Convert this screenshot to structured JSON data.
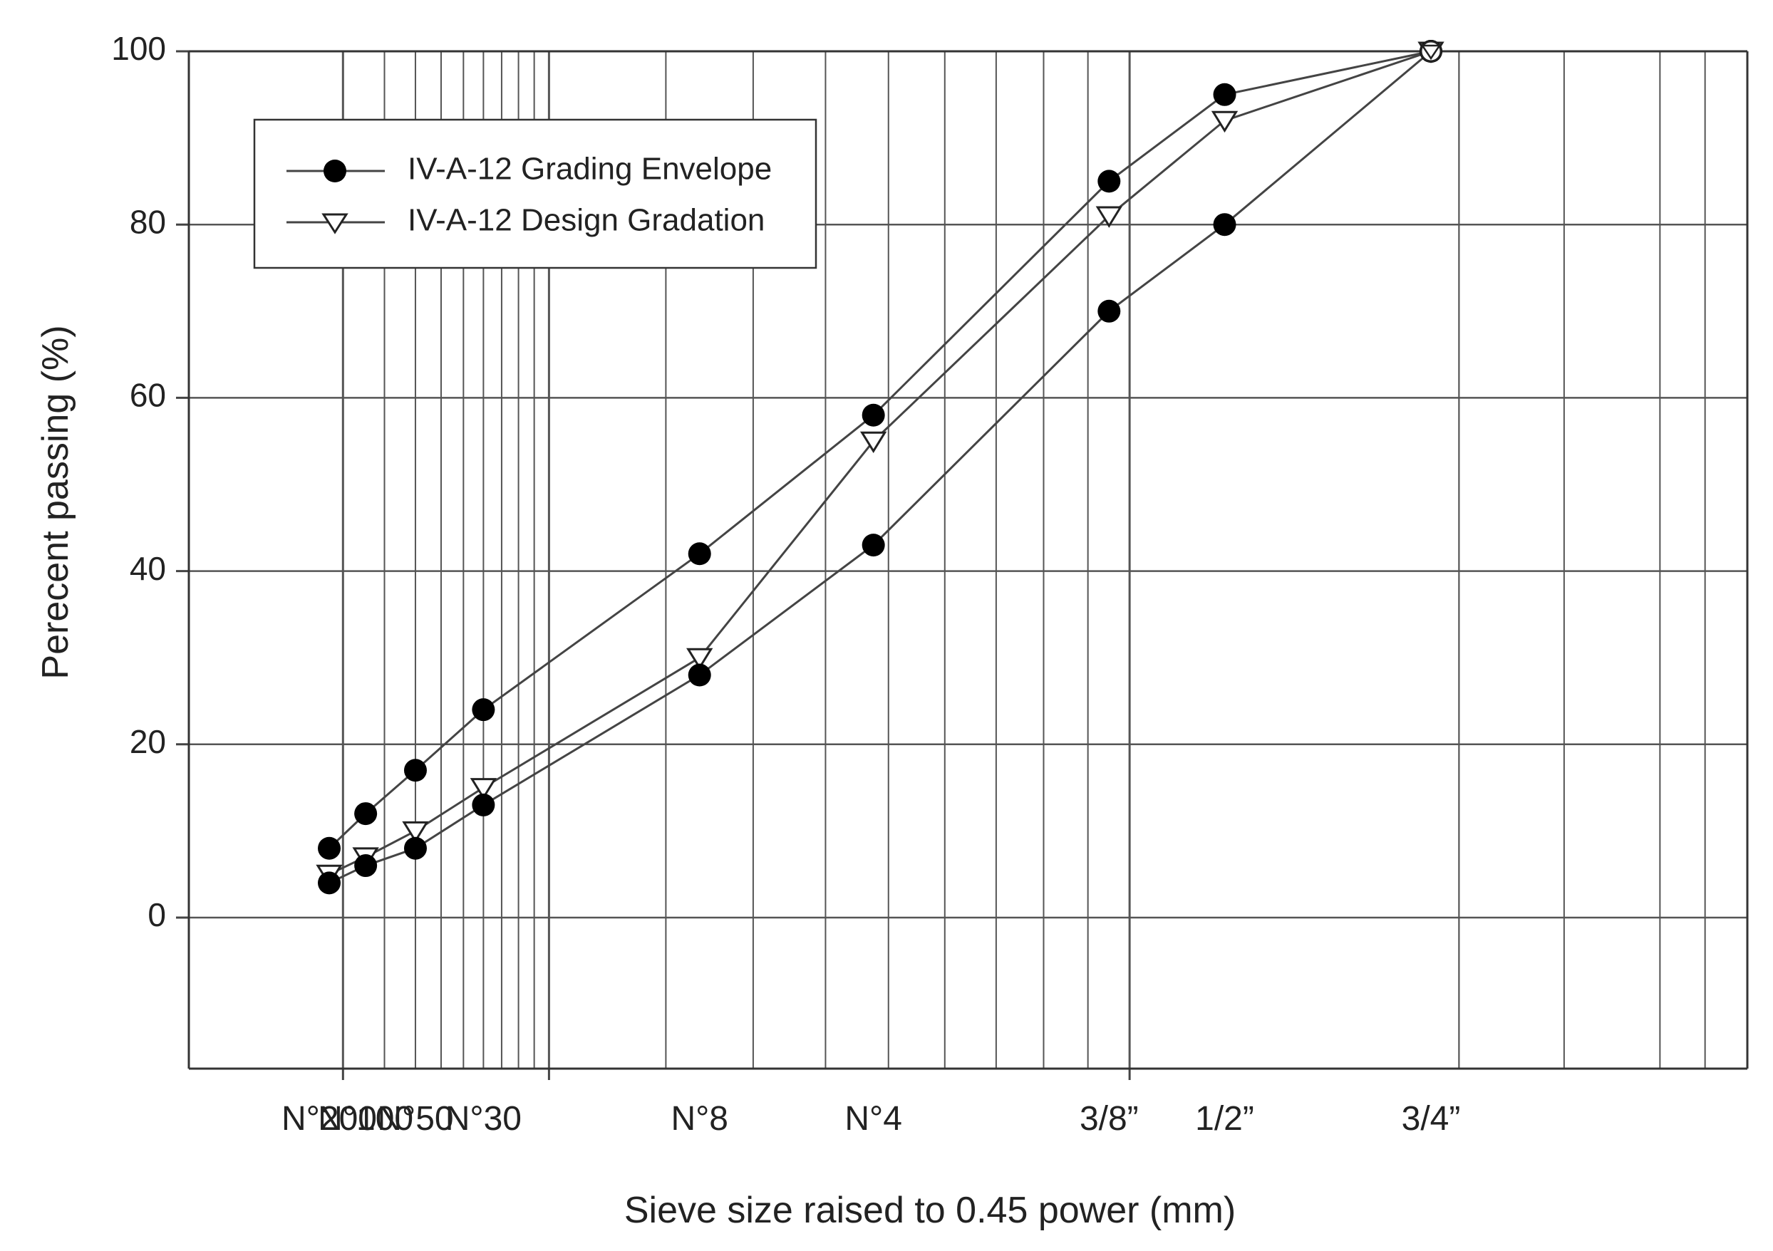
{
  "chart_data": {
    "type": "line",
    "title": "",
    "xlabel": "Sieve size raised to 0.45 power (mm)",
    "ylabel": "Perecent passing (%)",
    "ylim": [
      -18,
      100
    ],
    "yticks": [
      0,
      20,
      40,
      60,
      80,
      100
    ],
    "grid": true,
    "legend_position": "top-left",
    "sieves": [
      {
        "label": "N°200",
        "size_mm": 0.075
      },
      {
        "label": "N°100",
        "size_mm": 0.15
      },
      {
        "label": "N°50",
        "size_mm": 0.3
      },
      {
        "label": "N°30",
        "size_mm": 0.6
      },
      {
        "label": "N°8",
        "size_mm": 2.36
      },
      {
        "label": "N°4",
        "size_mm": 4.75
      },
      {
        "label": "3/8”",
        "size_mm": 9.5
      },
      {
        "label": "1/2”",
        "size_mm": 12.5
      },
      {
        "label": "3/4”",
        "size_mm": 19.0
      }
    ],
    "series": [
      {
        "name": "IV-A-12 Grading Envelope",
        "marker": "filled-circle",
        "subseries": [
          {
            "name": "upper limit",
            "values": [
              8,
              12,
              17,
              24,
              42,
              58,
              85,
              95,
              100
            ]
          },
          {
            "name": "lower limit",
            "values": [
              4,
              6,
              8,
              13,
              28,
              43,
              70,
              80,
              100
            ]
          }
        ]
      },
      {
        "name": "IV-A-12 Design Gradation",
        "marker": "open-triangle-down",
        "values": [
          5,
          7,
          10,
          15,
          30,
          55,
          81,
          92,
          100
        ]
      }
    ]
  }
}
